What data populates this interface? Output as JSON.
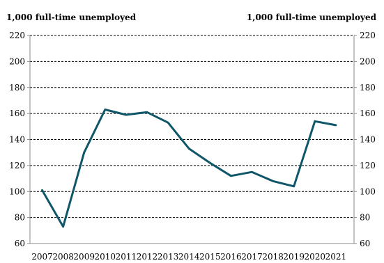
{
  "chart_data": {
    "type": "line",
    "ylabel_left": "1,000 full-time unemployed",
    "ylabel_right": "1,000 full-time unemployed",
    "categories": [
      "2007",
      "2008",
      "2009",
      "2010",
      "2011",
      "2012",
      "2013",
      "2014",
      "2015",
      "2016",
      "2017",
      "2018",
      "2019",
      "2020",
      "2021"
    ],
    "series": [
      {
        "values": [
          101,
          73,
          130,
          163,
          159,
          161,
          153,
          133,
          122,
          112,
          115,
          108,
          104,
          154,
          151
        ],
        "color": "#0f5668"
      }
    ],
    "ylim": [
      60,
      220
    ],
    "yticks": [
      60,
      80,
      100,
      120,
      140,
      160,
      180,
      200,
      220
    ],
    "grid": "horizontal dashed",
    "right_axis_mirrors_left": true
  }
}
